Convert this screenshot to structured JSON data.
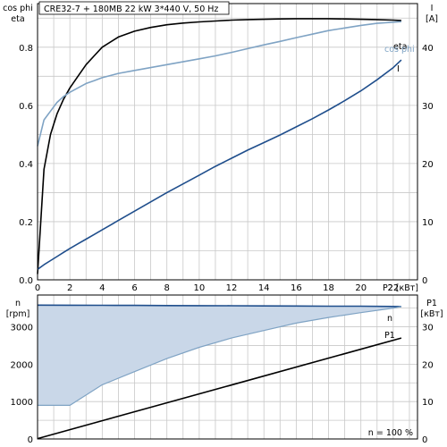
{
  "title": "CRE32-7 + 180MB   22 kW   3*440 V, 50 Hz",
  "colors": {
    "eta": "#000000",
    "cos_phi": "#7fa3c4",
    "current": "#1f4e8c",
    "speed": "#1f4e8c",
    "speed_fill": "#c9d7e8",
    "p1": "#000000",
    "grid": "#c8c8c8"
  },
  "chart_data": [
    {
      "type": "line",
      "x": [
        0,
        0.4,
        0.8,
        1.2,
        1.6,
        2,
        2.5,
        3,
        3.5,
        4,
        5,
        6,
        7,
        8,
        9,
        10,
        11,
        12,
        13,
        14,
        15,
        16,
        17,
        18,
        19,
        20,
        21,
        22,
        22.5
      ],
      "series": [
        {
          "name": "eta",
          "axis": "left",
          "values": [
            0.02,
            0.38,
            0.5,
            0.57,
            0.62,
            0.66,
            0.7,
            0.74,
            0.77,
            0.8,
            0.835,
            0.855,
            0.868,
            0.877,
            0.883,
            0.887,
            0.89,
            0.893,
            0.895,
            0.896,
            0.897,
            0.898,
            0.898,
            0.898,
            0.897,
            0.896,
            0.895,
            0.893,
            0.892
          ]
        },
        {
          "name": "cos phi",
          "axis": "left",
          "values": [
            0.46,
            0.55,
            0.58,
            0.61,
            0.63,
            0.645,
            0.66,
            0.675,
            0.685,
            0.695,
            0.71,
            0.72,
            0.73,
            0.74,
            0.75,
            0.76,
            0.77,
            0.782,
            0.795,
            0.808,
            0.82,
            0.833,
            0.845,
            0.857,
            0.866,
            0.875,
            0.882,
            0.886,
            0.888
          ]
        },
        {
          "name": "I",
          "axis": "right",
          "values": [
            1.8,
            2.6,
            3.3,
            4.0,
            4.7,
            5.4,
            6.2,
            7.0,
            7.8,
            8.6,
            10.2,
            11.8,
            13.4,
            15.0,
            16.5,
            18.0,
            19.5,
            20.9,
            22.3,
            23.6,
            24.9,
            26.3,
            27.7,
            29.2,
            30.8,
            32.5,
            34.4,
            36.5,
            37.8
          ]
        }
      ],
      "xlabel": "P2 [кВт]",
      "xlim": [
        0,
        23.5
      ],
      "xticks": [
        0,
        2,
        4,
        6,
        8,
        10,
        12,
        14,
        16,
        18,
        20,
        22
      ],
      "ylabel_left": [
        "cos phi",
        "eta"
      ],
      "ylim_left": [
        0,
        0.95
      ],
      "yticks_left": [
        0,
        0.2,
        0.4,
        0.6,
        0.8
      ],
      "ylabel_right": [
        "I",
        "[A]"
      ],
      "ylim_right": [
        0,
        47.5
      ],
      "yticks_right": [
        0,
        10,
        20,
        30,
        40
      ],
      "series_labels": [
        "eta",
        "cos phi",
        "I"
      ],
      "grid": true
    },
    {
      "type": "area",
      "x": [
        0,
        2,
        4,
        6,
        8,
        10,
        12,
        14,
        16,
        18,
        20,
        22,
        22.5
      ],
      "series": [
        {
          "name": "n",
          "axis": "left",
          "upper": [
            3580,
            3578,
            3575,
            3572,
            3568,
            3565,
            3562,
            3558,
            3555,
            3552,
            3550,
            3545,
            3542
          ],
          "lower": [
            900,
            900,
            1450,
            1800,
            2150,
            2450,
            2700,
            2900,
            3100,
            3250,
            3380,
            3500,
            3542
          ]
        },
        {
          "name": "P1",
          "axis": "right",
          "x": [
            0,
            22.5
          ],
          "values": [
            0.1,
            27
          ]
        }
      ],
      "xlim": [
        0,
        23.5
      ],
      "ylabel_left": [
        "n",
        "[rpm]"
      ],
      "ylim_left": [
        0,
        3850
      ],
      "yticks_left": [
        0,
        1000,
        2000,
        3000
      ],
      "ylabel_right": [
        "P1",
        "[кВт]"
      ],
      "ylim_right": [
        0,
        38.5
      ],
      "yticks_right": [
        0,
        10,
        20,
        30
      ],
      "series_labels": [
        "n",
        "P1"
      ],
      "annotation": "n = 100 %",
      "grid": true
    }
  ]
}
